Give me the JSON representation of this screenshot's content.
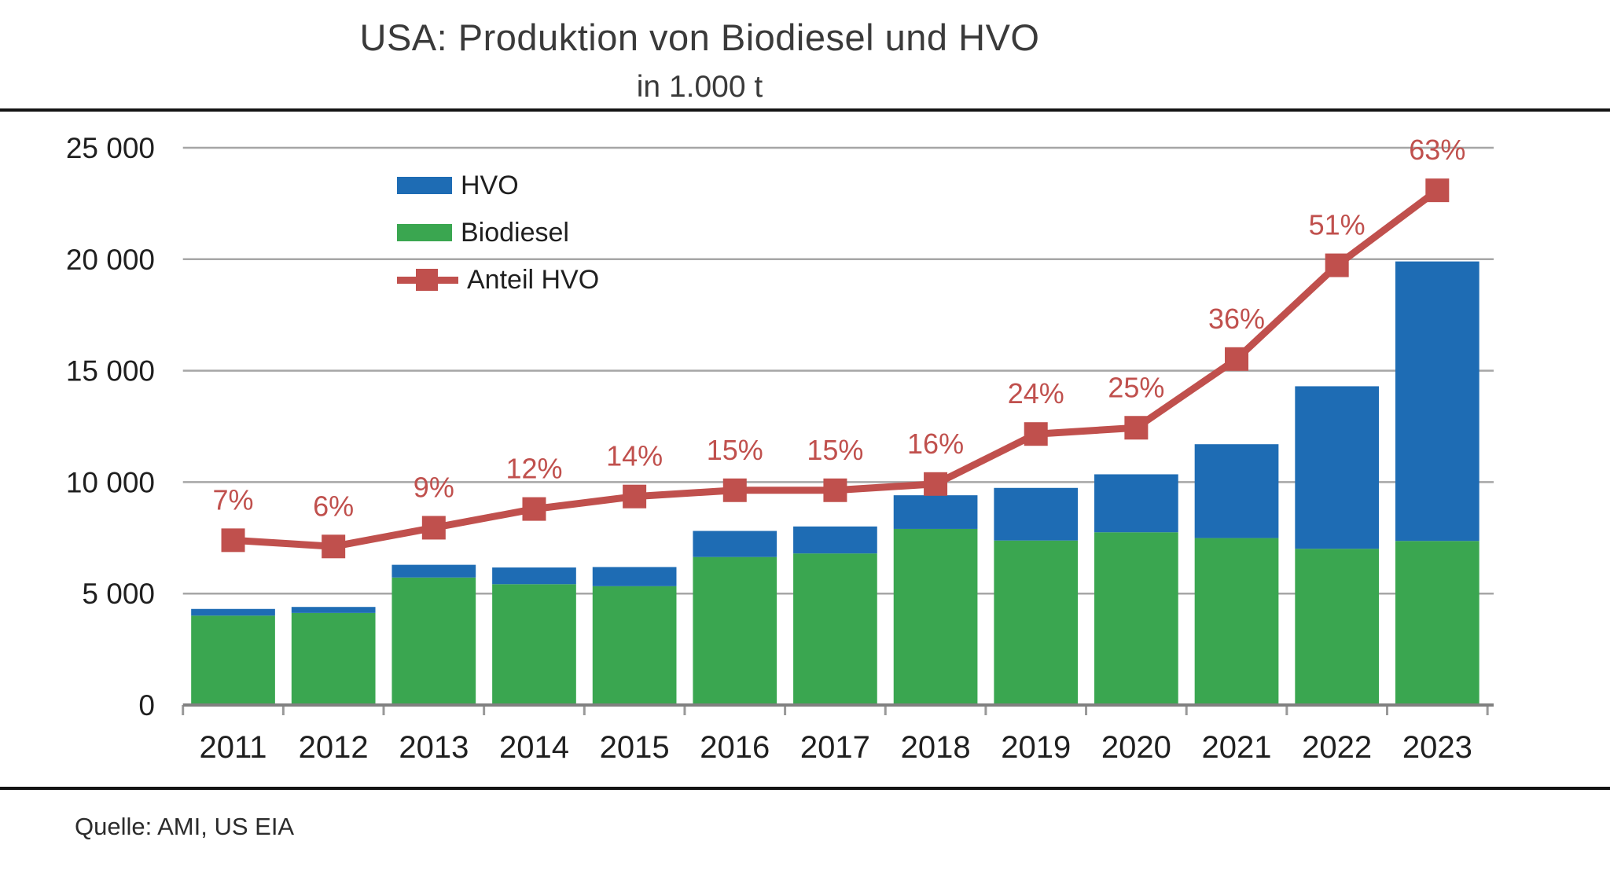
{
  "header": {
    "title": "USA: Produktion von Biodiesel und HVO",
    "subtitle": "in 1.000 t"
  },
  "footer": {
    "source": "Quelle: AMI, US EIA"
  },
  "legend": {
    "items": [
      {
        "label": "HVO",
        "color": "#1E6CB4",
        "marker": "rect"
      },
      {
        "label": "Biodiesel",
        "color": "#3AA650",
        "marker": "rect"
      },
      {
        "label": "Anteil HVO",
        "color": "#C0504D",
        "marker": "line-square"
      }
    ]
  },
  "colors": {
    "hvo_blue": "#1E6CB4",
    "biodiesel_green": "#3AA650",
    "anteil_red": "#C0504D",
    "gridline_gray": "#A6A6A6",
    "axis_gray": "#808080",
    "text_dark": "#1f1f1f",
    "rule_black": "#141414"
  },
  "chart_data": {
    "type": "bar",
    "variant": "stacked-bars-with-percent-line",
    "title": "USA: Produktion von Biodiesel und HVO",
    "subtitle": "in 1.000 t",
    "unit": "1.000 t",
    "categories": [
      "2011",
      "2012",
      "2013",
      "2014",
      "2015",
      "2016",
      "2017",
      "2018",
      "2019",
      "2020",
      "2021",
      "2022",
      "2023"
    ],
    "series": [
      {
        "name": "Biodiesel",
        "type": "bar",
        "stack": "production",
        "color": "#3AA650",
        "values": [
          4010,
          4130,
          5720,
          5420,
          5330,
          6640,
          6800,
          7900,
          7380,
          7750,
          7490,
          7010,
          7360
        ]
      },
      {
        "name": "HVO",
        "type": "bar",
        "stack": "production",
        "color": "#1E6CB4",
        "values": [
          300,
          270,
          570,
          750,
          860,
          1170,
          1210,
          1510,
          2360,
          2600,
          4210,
          7290,
          12540
        ]
      },
      {
        "name": "Anteil HVO",
        "type": "line",
        "axis": "secondary-percent",
        "color": "#C0504D",
        "marker": "square",
        "values": [
          7,
          6,
          9,
          12,
          14,
          15,
          15,
          16,
          24,
          25,
          36,
          51,
          63
        ],
        "labels": [
          "7%",
          "6%",
          "9%",
          "12%",
          "14%",
          "15%",
          "15%",
          "16%",
          "24%",
          "25%",
          "36%",
          "51%",
          "63%"
        ]
      }
    ],
    "xlabel": "",
    "ylabel": "",
    "ylim": [
      0,
      25000
    ],
    "yticks": [
      {
        "value": 0,
        "label": "0"
      },
      {
        "value": 5000,
        "label": "5 000"
      },
      {
        "value": 10000,
        "label": "10 000"
      },
      {
        "value": 15000,
        "label": "15 000"
      },
      {
        "value": 20000,
        "label": "20 000"
      },
      {
        "value": 25000,
        "label": "25 000"
      }
    ],
    "grid": "horizontal",
    "legend_position": "top-left-inside"
  }
}
